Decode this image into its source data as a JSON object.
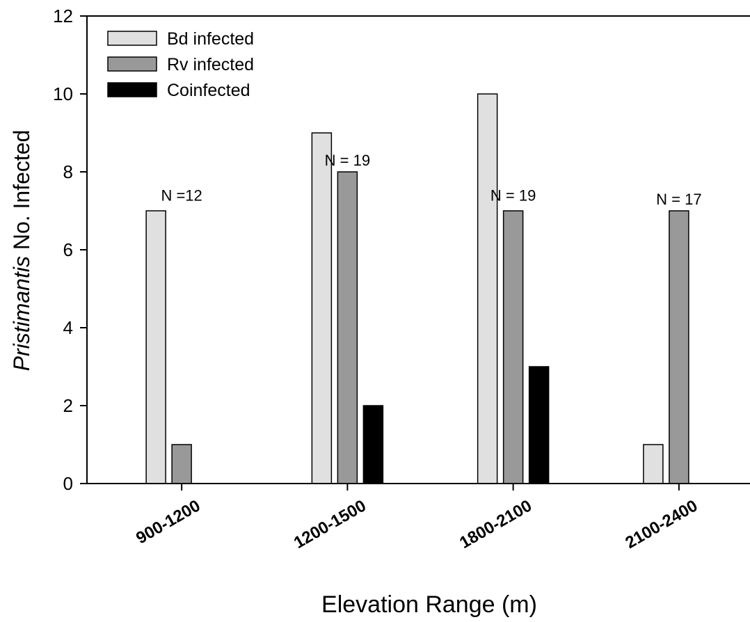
{
  "chart_data": {
    "type": "bar",
    "title": "",
    "xlabel": "Elevation Range (m)",
    "ylabel_italic": "Pristimantis",
    "ylabel_rest": " No. Infected",
    "ylim": [
      0,
      12
    ],
    "yticks": [
      0,
      2,
      4,
      6,
      8,
      10,
      12
    ],
    "categories": [
      "900-1200",
      "1200-1500",
      "1800-2100",
      "2100-2400"
    ],
    "series": [
      {
        "name": "Bd infected",
        "color": "#e0e0e0",
        "values": [
          7,
          9,
          10,
          1
        ]
      },
      {
        "name": "Rv infected",
        "color": "#999999",
        "values": [
          1,
          8,
          7,
          7
        ]
      },
      {
        "name": "Coinfected",
        "color": "#000000",
        "values": [
          0,
          2,
          3,
          0
        ]
      }
    ],
    "annotations": [
      {
        "text": "N =12",
        "category": 0,
        "y": 7.4
      },
      {
        "text": "N = 19",
        "category": 1,
        "y": 8.3
      },
      {
        "text": "N = 19",
        "category": 2,
        "y": 7.4
      },
      {
        "text": "N = 17",
        "category": 3,
        "y": 7.3
      }
    ],
    "legend_position": "top-left",
    "grid": false
  }
}
